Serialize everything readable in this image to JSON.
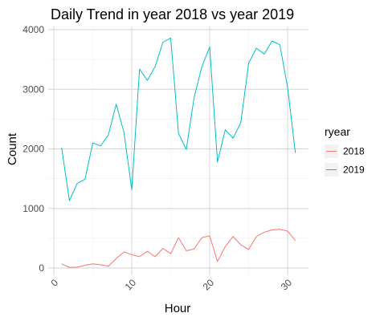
{
  "chart_data": {
    "type": "line",
    "title": "Daily Trend in year 2018 vs year 2019",
    "xlabel": "Hour",
    "ylabel": "Count",
    "xlim": [
      0,
      31
    ],
    "ylim": [
      0,
      4000
    ],
    "x_ticks": [
      0,
      10,
      20,
      30
    ],
    "y_ticks": [
      0,
      1000,
      2000,
      3000,
      4000
    ],
    "grid": true,
    "legend_title": "ryear",
    "legend_position": "right",
    "x": [
      1,
      2,
      3,
      4,
      5,
      6,
      7,
      8,
      9,
      10,
      11,
      12,
      13,
      14,
      15,
      16,
      17,
      18,
      19,
      20,
      21,
      22,
      23,
      24,
      25,
      26,
      27,
      28,
      29,
      30,
      31
    ],
    "series": [
      {
        "name": "2018",
        "color": "#F8766D",
        "values": [
          70,
          10,
          15,
          45,
          70,
          55,
          30,
          160,
          270,
          225,
          190,
          280,
          190,
          330,
          240,
          510,
          290,
          320,
          510,
          540,
          110,
          360,
          530,
          390,
          310,
          530,
          600,
          640,
          650,
          620,
          460
        ]
      },
      {
        "name": "2019",
        "color": "#00BFC4",
        "values": [
          2020,
          1130,
          1420,
          1490,
          2100,
          2050,
          2230,
          2750,
          2280,
          1310,
          3340,
          3150,
          3380,
          3790,
          3860,
          2260,
          1990,
          2860,
          3380,
          3710,
          1780,
          2320,
          2180,
          2440,
          3440,
          3690,
          3590,
          3810,
          3750,
          3030,
          1930
        ]
      }
    ]
  }
}
